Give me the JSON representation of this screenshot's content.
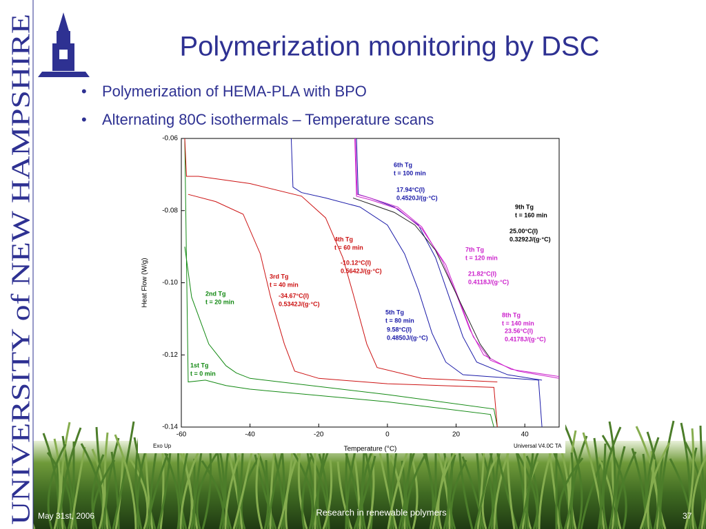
{
  "slide": {
    "university": "UNIVERSITY of NEW HAMPSHIRE",
    "title": "Polymerization monitoring by DSC",
    "bullets": [
      "Polymerization of HEMA-PLA with BPO",
      "Alternating 80C isothermals – Temperature scans"
    ],
    "footer_date": "May 31st, 2006",
    "footer_center": "Research in renewable polymers",
    "page_number": "37"
  },
  "chart_data": {
    "type": "line",
    "xlabel": "Temperature (°C)",
    "ylabel": "Heat Flow (W/g)",
    "corner_left": "Exo Up",
    "corner_right": "Universal V4.0C TA",
    "xlim": [
      -60,
      50
    ],
    "ylim": [
      -0.14,
      -0.06
    ],
    "xticks": [
      -60,
      -40,
      -20,
      0,
      20,
      40
    ],
    "yticks": [
      -0.14,
      -0.12,
      {
        "value": -0.1,
        "label": "-0.10"
      },
      -0.08,
      -0.06
    ],
    "annotations": [
      {
        "color": "#1a1aa8",
        "lines": [
          "6th Tg",
          "t = 100 min",
          "17.94°C(I)",
          "0.4520J/(g·°C)"
        ]
      },
      {
        "color": "#000000",
        "lines": [
          "9th Tg",
          "t = 160 min",
          "25.00°C(I)",
          "0.3292J/(g·°C)"
        ]
      },
      {
        "color": "#cc1111",
        "lines": [
          "4th Tg",
          "t = 60 min",
          "-10.12°C(I)",
          "0.5642J/(g·°C)"
        ]
      },
      {
        "color": "#cc22cc",
        "lines": [
          "7th Tg",
          "t = 120 min",
          "21.82°C(I)",
          "0.4118J/(g·°C)"
        ]
      },
      {
        "color": "#cc1111",
        "lines": [
          "3rd Tg",
          "t = 40 min",
          "-34.67°C(I)",
          "0.5342J/(g·°C)"
        ]
      },
      {
        "color": "#118811",
        "lines": [
          "2nd Tg",
          "t = 20 min"
        ]
      },
      {
        "color": "#1a1aa8",
        "lines": [
          "5th Tg",
          "t = 80 min",
          "9.58°C(I)",
          "0.4850J/(g·°C)"
        ]
      },
      {
        "color": "#cc22cc",
        "lines": [
          "8th Tg",
          "t = 140 min",
          "23.56°C(I)",
          "0.4178J/(g·°C)"
        ]
      },
      {
        "color": "#118811",
        "lines": [
          "1st Tg",
          "t = 0 min"
        ]
      }
    ],
    "series": [
      {
        "color": "#118811",
        "x": [
          -59,
          -58,
          -53,
          -47,
          -40,
          0,
          30,
          31
        ],
        "values": [
          -0.06,
          -0.1275,
          -0.127,
          -0.1285,
          -0.1295,
          -0.133,
          -0.1365,
          -0.14
        ]
      },
      {
        "color": "#118811",
        "x": [
          -59,
          -57,
          -52,
          -47,
          -44,
          -40,
          0,
          31,
          32
        ],
        "values": [
          -0.09,
          -0.104,
          -0.117,
          -0.123,
          -0.125,
          -0.1265,
          -0.131,
          -0.135,
          -0.14
        ]
      },
      {
        "color": "#cc1111",
        "x": [
          -58,
          -50,
          -42,
          -37,
          -34,
          -30,
          -27,
          -20,
          0,
          31,
          32
        ],
        "values": [
          -0.0755,
          -0.0775,
          -0.081,
          -0.092,
          -0.104,
          -0.117,
          -0.1245,
          -0.1265,
          -0.128,
          -0.129,
          -0.14
        ]
      },
      {
        "color": "#cc1111",
        "x": [
          -59,
          -58.5,
          -55,
          -40,
          -25,
          -18,
          -13,
          -10,
          -6,
          -3,
          10,
          32
        ],
        "values": [
          -0.06,
          -0.0705,
          -0.0705,
          -0.0725,
          -0.076,
          -0.082,
          -0.093,
          -0.103,
          -0.117,
          -0.1235,
          -0.1265,
          -0.1275
        ]
      },
      {
        "color": "#1a1aa8",
        "x": [
          -28,
          -27.5,
          -25,
          -18,
          -8,
          0,
          5,
          9,
          13,
          17,
          22,
          44,
          45
        ],
        "values": [
          -0.06,
          -0.0735,
          -0.075,
          -0.0765,
          -0.079,
          -0.084,
          -0.092,
          -0.102,
          -0.114,
          -0.122,
          -0.1255,
          -0.127,
          -0.14
        ]
      },
      {
        "color": "#1a1aa8",
        "x": [
          -9,
          -8.5,
          -5,
          2,
          9,
          14,
          18,
          22,
          26,
          35,
          45
        ],
        "values": [
          -0.06,
          -0.0755,
          -0.0765,
          -0.079,
          -0.084,
          -0.093,
          -0.104,
          -0.115,
          -0.122,
          -0.1255,
          -0.127
        ]
      },
      {
        "color": "#cc22cc",
        "x": [
          -9.3,
          -8.8,
          -5,
          3,
          10,
          16,
          20,
          24,
          28,
          36,
          50
        ],
        "values": [
          -0.06,
          -0.0755,
          -0.0765,
          -0.079,
          -0.0845,
          -0.094,
          -0.103,
          -0.113,
          -0.12,
          -0.124,
          -0.126
        ]
      },
      {
        "color": "#cc22cc",
        "x": [
          -9.5,
          -9,
          -5,
          3,
          10,
          17,
          21,
          25,
          30,
          38,
          50
        ],
        "values": [
          -0.06,
          -0.076,
          -0.077,
          -0.0795,
          -0.085,
          -0.095,
          -0.105,
          -0.115,
          -0.1215,
          -0.1245,
          -0.1265
        ]
      },
      {
        "color": "#222222",
        "x": [
          -10,
          -4,
          2,
          8,
          14,
          19,
          23,
          27,
          30
        ],
        "values": [
          -0.0765,
          -0.0785,
          -0.0805,
          -0.084,
          -0.091,
          -0.101,
          -0.109,
          -0.117,
          -0.121
        ]
      }
    ]
  }
}
